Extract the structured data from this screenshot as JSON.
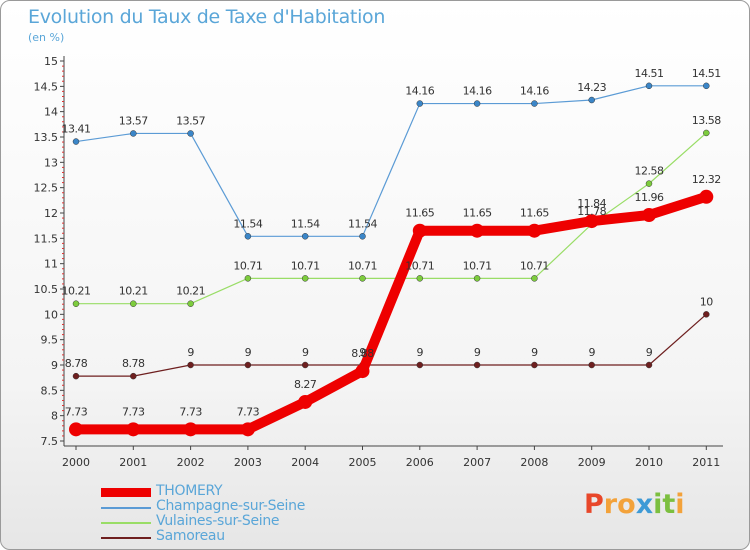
{
  "title": "Evolution du Taux de Taxe d'Habitation",
  "subtitle": "(en %)",
  "logo": {
    "letters": [
      {
        "ch": "P",
        "color": "#e8472a"
      },
      {
        "ch": "r",
        "color": "#f3a23a"
      },
      {
        "ch": "o",
        "color": "#f3a23a"
      },
      {
        "ch": "x",
        "color": "#3e9ad6"
      },
      {
        "ch": "i",
        "color": "#7cbf3f"
      },
      {
        "ch": "t",
        "color": "#7cbf3f"
      },
      {
        "ch": "i",
        "color": "#f3a23a"
      }
    ]
  },
  "chart_data": {
    "type": "line",
    "title": "Evolution du Taux de Taxe d'Habitation",
    "ylabel": "(en %)",
    "xlabel": "",
    "x": [
      "2000",
      "2001",
      "2002",
      "2003",
      "2004",
      "2005",
      "2006",
      "2007",
      "2008",
      "2009",
      "2010",
      "2011"
    ],
    "ylim": [
      7.5,
      15
    ],
    "yticks": [
      "7.5",
      "8",
      "8.5",
      "9",
      "9.5",
      "10",
      "10.5",
      "11",
      "11.5",
      "12",
      "12.5",
      "13",
      "13.5",
      "14",
      "14.5",
      "15"
    ],
    "grid": false,
    "legend_position": "bottom-left",
    "series": [
      {
        "name": "THOMERY",
        "color": "#ee0000",
        "values": [
          7.73,
          7.73,
          7.73,
          7.73,
          8.27,
          8.88,
          11.65,
          11.65,
          11.65,
          11.84,
          11.96,
          12.32
        ],
        "labels": [
          "7.73",
          "7.73",
          "7.73",
          "7.73",
          "8.27",
          "8.88",
          "11.65",
          "11.65",
          "11.65",
          "11.84",
          "11.96",
          "12.32"
        ]
      },
      {
        "name": "Champagne-sur-Seine",
        "color": "#5b9bd5",
        "values": [
          13.41,
          13.57,
          13.57,
          11.54,
          11.54,
          11.54,
          14.16,
          14.16,
          14.16,
          14.23,
          14.51,
          14.51
        ],
        "labels": [
          "13.41",
          "13.57",
          "13.57",
          "11.54",
          "11.54",
          "11.54",
          "14.16",
          "14.16",
          "14.16",
          "14.23",
          "14.51",
          "14.51"
        ]
      },
      {
        "name": "Vulaines-sur-Seine",
        "color": "#99dd66",
        "values": [
          10.21,
          10.21,
          10.21,
          10.71,
          10.71,
          10.71,
          10.71,
          10.71,
          10.71,
          11.78,
          12.58,
          13.58
        ],
        "labels": [
          "10.21",
          "10.21",
          "10.21",
          "10.71",
          "10.71",
          "10.71",
          "10.71",
          "10.71",
          "10.71",
          "11.78",
          "12.58",
          "13.58"
        ]
      },
      {
        "name": "Samoreau",
        "color": "#6e1f1f",
        "values": [
          8.78,
          8.78,
          9,
          9,
          9,
          9,
          9,
          9,
          9,
          9,
          9,
          10
        ],
        "labels": [
          "8.78",
          "8.78",
          "9",
          "9",
          "9",
          "9",
          "9",
          "9",
          "9",
          "9",
          "9",
          "10"
        ]
      }
    ]
  }
}
